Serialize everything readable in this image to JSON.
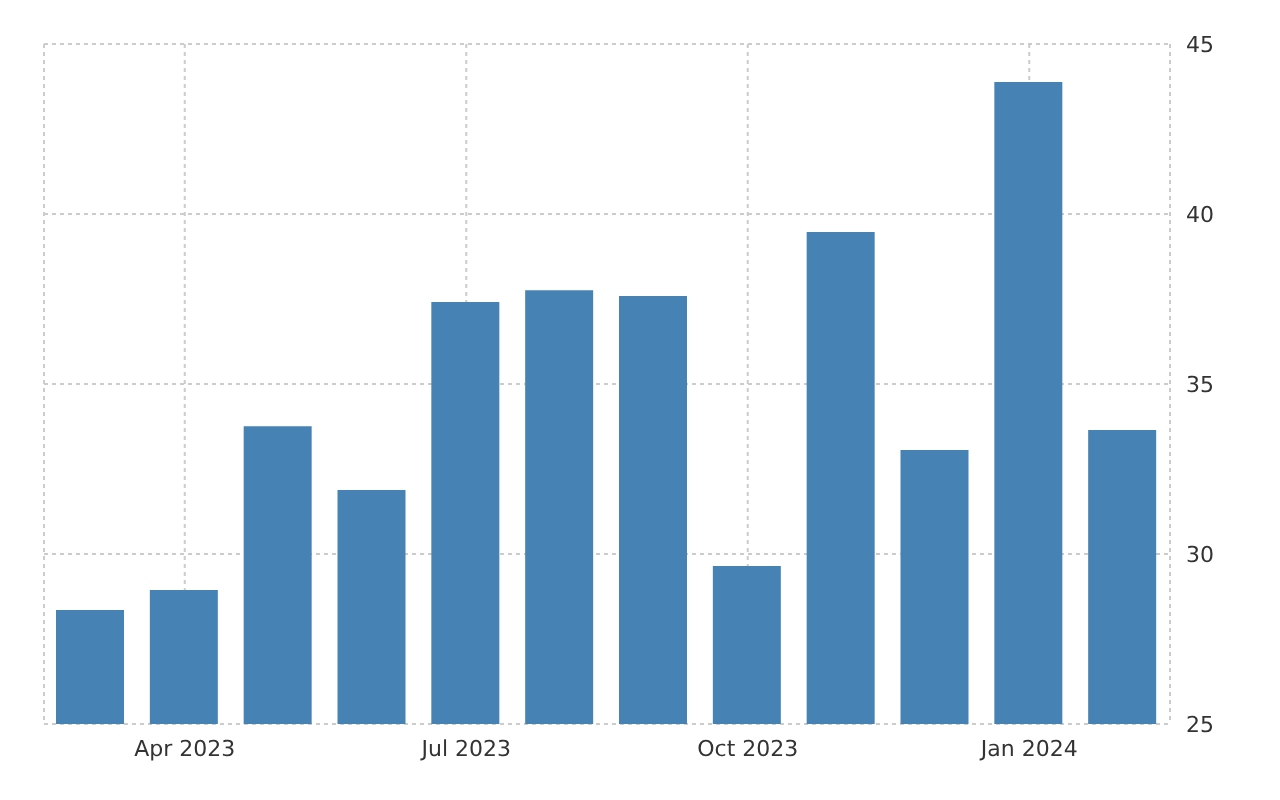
{
  "chart_data": {
    "type": "bar",
    "categories": [
      null,
      "Apr 2023",
      null,
      null,
      "Jul 2023",
      null,
      null,
      "Oct 2023",
      null,
      null,
      "Jan 2024",
      null
    ],
    "values": [
      28.35,
      28.94,
      33.76,
      31.88,
      37.41,
      37.76,
      37.59,
      29.65,
      39.47,
      33.06,
      43.88,
      33.65
    ],
    "color": "#4682b4",
    "ylim": [
      25,
      45
    ],
    "yticks": [
      25,
      30,
      35,
      40,
      45
    ],
    "grid": true
  }
}
